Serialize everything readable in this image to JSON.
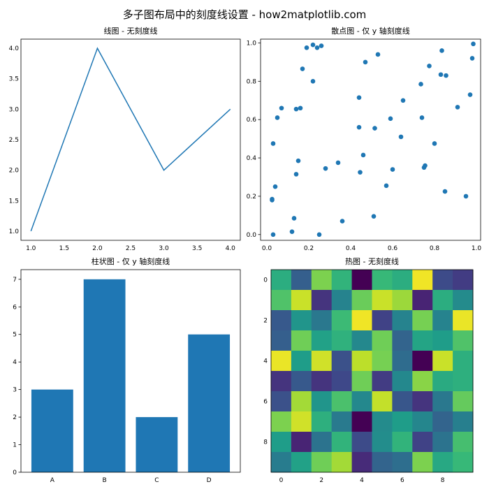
{
  "figure": {
    "suptitle": "多子图布局中的刻度线设置 - how2matplotlib.com"
  },
  "chart_data": [
    {
      "type": "line",
      "title": "线图 - 无刻度线",
      "x": [
        1,
        2,
        3,
        4
      ],
      "y": [
        1,
        4,
        2,
        3
      ],
      "xlim": [
        0.85,
        4.15
      ],
      "ylim": [
        0.85,
        4.15
      ],
      "xticks": [
        1.0,
        1.5,
        2.0,
        2.5,
        3.0,
        3.5,
        4.0
      ],
      "yticks": [
        1.0,
        1.5,
        2.0,
        2.5,
        3.0,
        3.5,
        4.0
      ],
      "tick_marks_x": false,
      "tick_marks_y": false,
      "color": "#1f77b4"
    },
    {
      "type": "scatter",
      "title": "散点图 - 仅 y 轴刻度线",
      "x": [
        0.025,
        0.025,
        0.03,
        0.03,
        0.04,
        0.05,
        0.07,
        0.12,
        0.13,
        0.14,
        0.14,
        0.15,
        0.16,
        0.17,
        0.19,
        0.22,
        0.22,
        0.24,
        0.25,
        0.26,
        0.28,
        0.34,
        0.36,
        0.44,
        0.44,
        0.445,
        0.46,
        0.47,
        0.51,
        0.515,
        0.53,
        0.57,
        0.59,
        0.6,
        0.64,
        0.65,
        0.735,
        0.74,
        0.75,
        0.755,
        0.775,
        0.8,
        0.83,
        0.835,
        0.85,
        0.855,
        0.91,
        0.95,
        0.97,
        0.98,
        0.985
      ],
      "y": [
        0.18,
        0.185,
        0.475,
        0.0,
        0.25,
        0.61,
        0.66,
        0.015,
        0.085,
        0.655,
        0.315,
        0.385,
        0.66,
        0.865,
        0.975,
        0.8,
        0.99,
        0.975,
        0.0,
        0.985,
        0.345,
        0.375,
        0.07,
        0.715,
        0.56,
        0.325,
        0.415,
        0.9,
        0.095,
        0.555,
        0.94,
        0.255,
        0.605,
        0.34,
        0.51,
        0.7,
        0.785,
        0.61,
        0.35,
        0.36,
        0.88,
        0.475,
        0.835,
        0.96,
        0.225,
        0.83,
        0.665,
        0.2,
        0.73,
        0.92,
        0.995
      ],
      "xlim": [
        -0.03,
        1.02
      ],
      "ylim": [
        -0.03,
        1.02
      ],
      "xticks": [
        0.0,
        0.2,
        0.4,
        0.6,
        0.8,
        1.0
      ],
      "yticks": [
        0.0,
        0.2,
        0.4,
        0.6,
        0.8,
        1.0
      ],
      "tick_marks_x": false,
      "tick_marks_y": true,
      "color": "#1f77b4"
    },
    {
      "type": "bar",
      "title": "柱状图 - 仅 y 轴刻度线",
      "categories": [
        "A",
        "B",
        "C",
        "D"
      ],
      "values": [
        3,
        7,
        2,
        5
      ],
      "ylim": [
        0,
        7.35
      ],
      "yticks": [
        0,
        1,
        2,
        3,
        4,
        5,
        6,
        7
      ],
      "tick_marks_x": false,
      "tick_marks_y": true,
      "color": "#1f77b4"
    },
    {
      "type": "heatmap",
      "title": "热图 - 无刻度线",
      "colormap": "viridis",
      "values": [
        [
          0.62,
          0.3,
          0.8,
          0.65,
          0.0,
          0.67,
          0.62,
          0.98,
          0.23,
          0.18
        ],
        [
          0.72,
          0.92,
          0.15,
          0.45,
          0.77,
          0.92,
          0.85,
          0.1,
          0.62,
          0.48
        ],
        [
          0.28,
          0.52,
          0.4,
          0.68,
          0.98,
          0.2,
          0.45,
          0.79,
          0.45,
          0.97
        ],
        [
          0.3,
          0.78,
          0.57,
          0.64,
          0.47,
          0.78,
          0.32,
          0.58,
          0.55,
          0.72
        ],
        [
          0.97,
          0.55,
          0.93,
          0.25,
          0.9,
          0.79,
          0.35,
          0.0,
          0.92,
          0.63
        ],
        [
          0.15,
          0.28,
          0.15,
          0.22,
          0.78,
          0.18,
          0.47,
          0.82,
          0.61,
          0.63
        ],
        [
          0.25,
          0.86,
          0.52,
          0.71,
          0.47,
          0.91,
          0.27,
          0.15,
          0.4,
          0.76
        ],
        [
          0.8,
          0.93,
          0.63,
          0.41,
          0.0,
          0.48,
          0.55,
          0.46,
          0.32,
          0.43
        ],
        [
          0.55,
          0.1,
          0.38,
          0.65,
          0.23,
          0.49,
          0.65,
          0.2,
          0.38,
          0.7
        ],
        [
          0.42,
          0.57,
          0.78,
          0.86,
          0.12,
          0.32,
          0.36,
          0.8,
          0.6,
          0.67
        ]
      ],
      "xticks": [
        0,
        2,
        4,
        6,
        8
      ],
      "yticks": [
        0,
        2,
        4,
        6,
        8
      ],
      "tick_marks_x": false,
      "tick_marks_y": false
    }
  ]
}
